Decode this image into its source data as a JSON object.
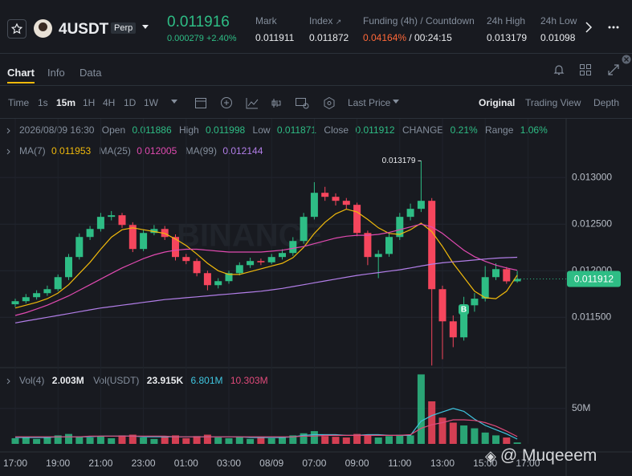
{
  "header": {
    "symbol": "4USDT",
    "tag": "Perp",
    "price": "0.011916",
    "change": "0.000279",
    "change_pct": "+2.40%",
    "stats": [
      {
        "label": "Mark",
        "value": "0.011911"
      },
      {
        "label": "Index",
        "value": "0.011872"
      },
      {
        "label": "Funding (4h) / Countdown",
        "value": "0.04164%",
        "value2": "/ 00:24:15"
      },
      {
        "label": "24h High",
        "value": "0.013179"
      },
      {
        "label": "24h Low",
        "value": "0.01098"
      }
    ]
  },
  "tabs": [
    "Chart",
    "Info",
    "Data"
  ],
  "toolbar": {
    "intervals": [
      "Time",
      "1s",
      "15m",
      "1H",
      "4H",
      "1D",
      "1W"
    ],
    "price_type": "Last Price",
    "views": [
      "Original",
      "Trading View",
      "Depth"
    ]
  },
  "legend": {
    "datetime": "2026/08/09 16:30",
    "open": "Open",
    "high": "High",
    "low": "Low",
    "close": "Close",
    "change_label": "CHANGE",
    "change": "0.21%",
    "range_label": "Range",
    "range": "1.06%"
  },
  "watermark": "@ Muqeeem",
  "brand_watermark": "BINANCE",
  "chart_data": {
    "type": "candlestick",
    "x_labels": [
      "17:00",
      "19:00",
      "21:00",
      "23:00",
      "01:00",
      "03:00",
      "08/09",
      "07:00",
      "09:00",
      "11:00",
      "13:00",
      "15:00",
      "17:00"
    ],
    "up_color": "#2ebd85",
    "down_color": "#f6465d",
    "ylim": [
      0.01096,
      0.01363
    ],
    "yticks": [
      {
        "value": 0.0115,
        "label": "0.011500"
      },
      {
        "value": 0.012,
        "label": "0.012000"
      },
      {
        "value": 0.0125,
        "label": "0.012500"
      },
      {
        "value": 0.013,
        "label": "0.013000"
      }
    ],
    "grid": true,
    "candles": [
      [
        0.01164,
        0.0117,
        0.01161,
        0.011673
      ],
      [
        0.011673,
        0.01175,
        0.01165,
        0.011716
      ],
      [
        0.011716,
        0.01179,
        0.01169,
        0.011759
      ],
      [
        0.011759,
        0.01184,
        0.01173,
        0.011802
      ],
      [
        0.011802,
        0.01196,
        0.01178,
        0.011931
      ],
      [
        0.011931,
        0.01218,
        0.0119,
        0.012147
      ],
      [
        0.012147,
        0.0124,
        0.01212,
        0.012362
      ],
      [
        0.012362,
        0.01248,
        0.01233,
        0.012448
      ],
      [
        0.012448,
        0.01262,
        0.01242,
        0.012578
      ],
      [
        0.012578,
        0.01264,
        0.01254,
        0.012595
      ],
      [
        0.012595,
        0.01262,
        0.01246,
        0.012491
      ],
      [
        0.012491,
        0.01252,
        0.0122,
        0.012233
      ],
      [
        0.012233,
        0.01244,
        0.01221,
        0.012405
      ],
      [
        0.012405,
        0.01249,
        0.01238,
        0.012448
      ],
      [
        0.012448,
        0.01248,
        0.01233,
        0.012362
      ],
      [
        0.012362,
        0.01239,
        0.01211,
        0.012147
      ],
      [
        0.012147,
        0.01218,
        0.01207,
        0.012104
      ],
      [
        0.012104,
        0.01213,
        0.01194,
        0.011974
      ],
      [
        0.011974,
        0.012,
        0.01179,
        0.011845
      ],
      [
        0.011845,
        0.01192,
        0.01181,
        0.011888
      ],
      [
        0.011888,
        0.012,
        0.01186,
        0.011974
      ],
      [
        0.011974,
        0.01209,
        0.01195,
        0.01206
      ],
      [
        0.01206,
        0.01214,
        0.01203,
        0.012104
      ],
      [
        0.012104,
        0.01213,
        0.01206,
        0.01209
      ],
      [
        0.01209,
        0.01218,
        0.01207,
        0.012147
      ],
      [
        0.012147,
        0.01223,
        0.01212,
        0.01219
      ],
      [
        0.01219,
        0.01236,
        0.01216,
        0.012319
      ],
      [
        0.012319,
        0.01262,
        0.01229,
        0.012578
      ],
      [
        0.012578,
        0.01295,
        0.01255,
        0.012836
      ],
      [
        0.012836,
        0.0129,
        0.01275,
        0.012793
      ],
      [
        0.012793,
        0.01283,
        0.0127,
        0.01275
      ],
      [
        0.01275,
        0.01278,
        0.01266,
        0.012707
      ],
      [
        0.012707,
        0.01273,
        0.01237,
        0.012405
      ],
      [
        0.012405,
        0.01243,
        0.01206,
        0.012147
      ],
      [
        0.012147,
        0.01222,
        0.01192,
        0.01218
      ],
      [
        0.01218,
        0.0124,
        0.01215,
        0.012362
      ],
      [
        0.012362,
        0.01262,
        0.01233,
        0.012578
      ],
      [
        0.012578,
        0.01272,
        0.01254,
        0.012664
      ],
      [
        0.012664,
        0.013179,
        0.01263,
        0.01275
      ],
      [
        0.01275,
        0.01278,
        0.010983,
        0.011802
      ],
      [
        0.011802,
        0.01184,
        0.01105,
        0.011457
      ],
      [
        0.011457,
        0.01152,
        0.01118,
        0.011285
      ],
      [
        0.011285,
        0.01172,
        0.01125,
        0.011629
      ],
      [
        0.011629,
        0.01176,
        0.01156,
        0.0117
      ],
      [
        0.0117,
        0.01205,
        0.01167,
        0.011931
      ],
      [
        0.011931,
        0.01208,
        0.0119,
        0.012017
      ],
      [
        0.012017,
        0.01204,
        0.01186,
        0.011886
      ],
      [
        0.011886,
        0.011998,
        0.011871,
        0.011912
      ]
    ],
    "ma": [
      {
        "name": "MA(7)",
        "color": "#f0b90b",
        "values": [
          0.0116,
          0.01163,
          0.01166,
          0.0117,
          0.01176,
          0.01185,
          0.01197,
          0.01209,
          0.01223,
          0.01236,
          0.01244,
          0.01246,
          0.01244,
          0.01242,
          0.0124,
          0.01234,
          0.01227,
          0.01218,
          0.01208,
          0.012,
          0.01196,
          0.01196,
          0.01199,
          0.01202,
          0.01205,
          0.01208,
          0.01214,
          0.01225,
          0.0124,
          0.01252,
          0.01261,
          0.01266,
          0.01263,
          0.01255,
          0.01246,
          0.0124,
          0.01239,
          0.01244,
          0.01251,
          0.01242,
          0.01226,
          0.01208,
          0.01193,
          0.01178,
          0.01171,
          0.0117,
          0.01178,
          0.011953
        ]
      },
      {
        "name": "MA(25)",
        "color": "#e04ab0",
        "values": [
          0.01152,
          0.01155,
          0.01159,
          0.01163,
          0.01168,
          0.01173,
          0.01179,
          0.01185,
          0.01191,
          0.01197,
          0.01203,
          0.01208,
          0.01213,
          0.01217,
          0.0122,
          0.01222,
          0.01223,
          0.01223,
          0.01222,
          0.01221,
          0.0122,
          0.0122,
          0.0122,
          0.0122,
          0.01221,
          0.01222,
          0.01224,
          0.01226,
          0.01229,
          0.01232,
          0.01235,
          0.01237,
          0.01238,
          0.01238,
          0.01239,
          0.01241,
          0.01244,
          0.01247,
          0.0125,
          0.01247,
          0.0124,
          0.01231,
          0.01222,
          0.01215,
          0.0121,
          0.01206,
          0.01203,
          0.012005
        ]
      },
      {
        "name": "MA(99)",
        "color": "#b27ee8",
        "values": [
          0.01144,
          0.01146,
          0.01148,
          0.0115,
          0.01152,
          0.01154,
          0.01156,
          0.01158,
          0.0116,
          0.011615,
          0.01163,
          0.011645,
          0.01166,
          0.011675,
          0.01169,
          0.0117,
          0.01171,
          0.01172,
          0.01173,
          0.01174,
          0.01175,
          0.01176,
          0.01177,
          0.01178,
          0.011795,
          0.01181,
          0.01183,
          0.01185,
          0.01187,
          0.01189,
          0.01191,
          0.01193,
          0.01195,
          0.011965,
          0.01198,
          0.011995,
          0.01201,
          0.01203,
          0.01205,
          0.01207,
          0.012085,
          0.012095,
          0.012105,
          0.012115,
          0.012125,
          0.012135,
          0.01214,
          0.012144
        ]
      }
    ],
    "volume": {
      "name": "Vol(4)",
      "last_label": "2.003M",
      "unit_label": "Vol(USDT)",
      "usdt_label": "23.915K",
      "ylim": [
        0,
        103000000
      ],
      "yticks": [
        {
          "value": 50000000,
          "label": "50M"
        }
      ],
      "values": [
        8000000,
        10000000,
        7000000,
        9000000,
        12000000,
        14000000,
        10000000,
        9000000,
        11000000,
        8000000,
        12000000,
        13000000,
        9000000,
        7000000,
        10000000,
        12000000,
        8000000,
        11000000,
        13000000,
        9000000,
        8000000,
        10000000,
        7000000,
        9000000,
        8000000,
        10000000,
        12000000,
        15000000,
        18000000,
        11000000,
        10000000,
        9000000,
        14000000,
        13000000,
        9000000,
        11000000,
        13000000,
        12000000,
        98000000,
        60000000,
        37000000,
        30000000,
        26000000,
        22000000,
        16000000,
        12000000,
        9000000,
        2003000
      ],
      "ma": [
        {
          "color": "#3fc6e0",
          "last_label": "6.801M",
          "values": [
            9000000,
            9000000,
            9000000,
            9000000,
            10000000,
            10000000,
            10000000,
            10000000,
            11000000,
            11000000,
            11000000,
            11000000,
            10000000,
            10000000,
            10000000,
            10000000,
            10000000,
            10000000,
            10000000,
            10000000,
            10000000,
            10000000,
            9000000,
            9000000,
            9000000,
            9000000,
            10000000,
            12000000,
            13000000,
            13000000,
            13000000,
            12000000,
            12000000,
            13000000,
            13000000,
            12000000,
            12000000,
            12000000,
            32000000,
            40000000,
            45000000,
            50000000,
            46000000,
            35000000,
            26000000,
            20000000,
            14000000,
            6801000
          ]
        },
        {
          "color": "#e04a7a",
          "last_label": "10.303M",
          "values": [
            10000000,
            10000000,
            10000000,
            10000000,
            10000000,
            10000000,
            10000000,
            11000000,
            11000000,
            11000000,
            11000000,
            11000000,
            11000000,
            11000000,
            11000000,
            10000000,
            10000000,
            10000000,
            10000000,
            10000000,
            10000000,
            10000000,
            10000000,
            10000000,
            10000000,
            10000000,
            10000000,
            11000000,
            11000000,
            12000000,
            12000000,
            12000000,
            12000000,
            12000000,
            12000000,
            12000000,
            12000000,
            13000000,
            22000000,
            27000000,
            30000000,
            34000000,
            34000000,
            33000000,
            30000000,
            25000000,
            18000000,
            10303000
          ]
        }
      ]
    },
    "trade_marker": "B"
  }
}
